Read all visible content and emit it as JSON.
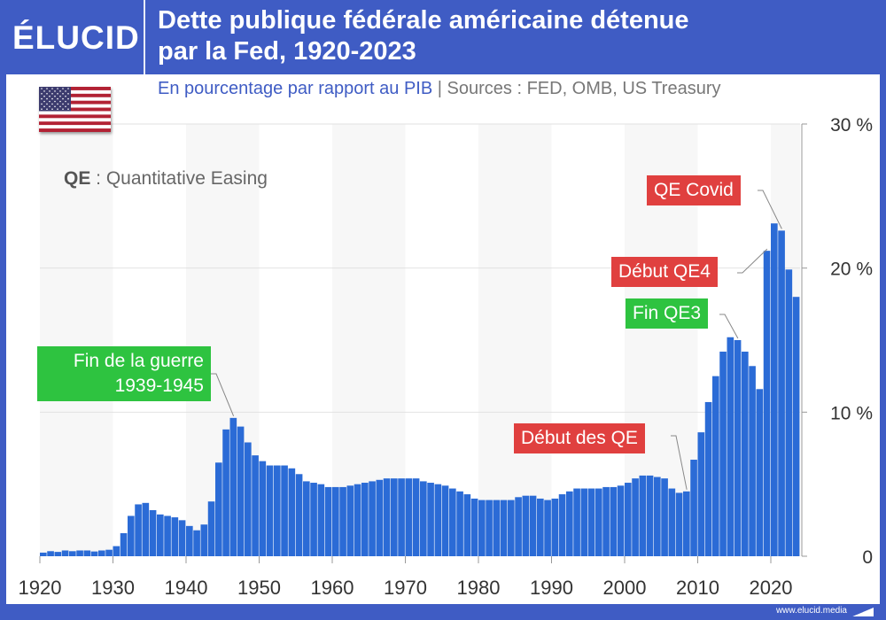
{
  "header": {
    "logo": "ÉLUCID",
    "title_line1": "Dette publique fédérale américaine détenue",
    "title_line2": "par la Fed, 1920-2023"
  },
  "subtitle": {
    "unit": "En pourcentage par rapport au PIB",
    "sources": " | Sources : FED, OMB, US Treasury"
  },
  "note": {
    "abbr": "QE",
    "text": " : Quantitative Easing"
  },
  "annotations": {
    "war_line1": "Fin de la guerre",
    "war_line2": "1939-1945",
    "qe_start": "Début des QE",
    "qe3_end": "Fin QE3",
    "qe4_start": "Début QE4",
    "qe_covid": "QE Covid"
  },
  "footer": {
    "url": "www.elucid.media"
  },
  "colors": {
    "brand": "#3f5cc4",
    "bar": "#2b6bd6",
    "green": "#2ec340",
    "red": "#e0403f",
    "band": "#f7f7f7"
  },
  "chart_data": {
    "type": "bar",
    "title": "Dette publique fédérale américaine détenue par la Fed, 1920-2023",
    "ylabel": "En pourcentage par rapport au PIB",
    "ylim": [
      0,
      30
    ],
    "y_ticks": [
      "0",
      "10 %",
      "20 %",
      "30 %"
    ],
    "x_ticks": [
      "1920",
      "1930",
      "1940",
      "1950",
      "1960",
      "1970",
      "1980",
      "1990",
      "2000",
      "2010",
      "2020"
    ],
    "grid": true,
    "x": [
      1920,
      1921,
      1922,
      1923,
      1924,
      1925,
      1926,
      1927,
      1928,
      1929,
      1930,
      1931,
      1932,
      1933,
      1934,
      1935,
      1936,
      1937,
      1938,
      1939,
      1940,
      1941,
      1942,
      1943,
      1944,
      1945,
      1946,
      1947,
      1948,
      1949,
      1950,
      1951,
      1952,
      1953,
      1954,
      1955,
      1956,
      1957,
      1958,
      1959,
      1960,
      1961,
      1962,
      1963,
      1964,
      1965,
      1966,
      1967,
      1968,
      1969,
      1970,
      1971,
      1972,
      1973,
      1974,
      1975,
      1976,
      1977,
      1978,
      1979,
      1980,
      1981,
      1982,
      1983,
      1984,
      1985,
      1986,
      1987,
      1988,
      1989,
      1990,
      1991,
      1992,
      1993,
      1994,
      1995,
      1996,
      1997,
      1998,
      1999,
      2000,
      2001,
      2002,
      2003,
      2004,
      2005,
      2006,
      2007,
      2008,
      2009,
      2010,
      2011,
      2012,
      2013,
      2014,
      2015,
      2016,
      2017,
      2018,
      2019,
      2020,
      2021,
      2022,
      2023
    ],
    "values": [
      0.25,
      0.35,
      0.3,
      0.4,
      0.35,
      0.4,
      0.4,
      0.33,
      0.4,
      0.45,
      0.7,
      1.6,
      2.8,
      3.6,
      3.7,
      3.2,
      2.9,
      2.8,
      2.7,
      2.5,
      2.1,
      1.8,
      2.2,
      3.8,
      6.5,
      8.8,
      9.6,
      9.0,
      7.9,
      7.0,
      6.6,
      6.3,
      6.3,
      6.3,
      6.1,
      5.7,
      5.2,
      5.1,
      5.0,
      4.8,
      4.8,
      4.8,
      4.9,
      5.0,
      5.1,
      5.2,
      5.3,
      5.4,
      5.4,
      5.4,
      5.4,
      5.4,
      5.2,
      5.1,
      5.0,
      4.9,
      4.7,
      4.5,
      4.3,
      4.0,
      3.9,
      3.9,
      3.9,
      3.9,
      3.9,
      4.1,
      4.2,
      4.2,
      4.0,
      3.9,
      4.0,
      4.3,
      4.5,
      4.7,
      4.7,
      4.7,
      4.7,
      4.8,
      4.8,
      4.9,
      5.1,
      5.4,
      5.6,
      5.6,
      5.5,
      5.4,
      4.7,
      4.4,
      4.5,
      6.7,
      8.6,
      10.7,
      12.5,
      14.2,
      15.2,
      15.0,
      14.2,
      13.2,
      11.6,
      21.2,
      23.1,
      22.6,
      19.9,
      18.0
    ]
  }
}
